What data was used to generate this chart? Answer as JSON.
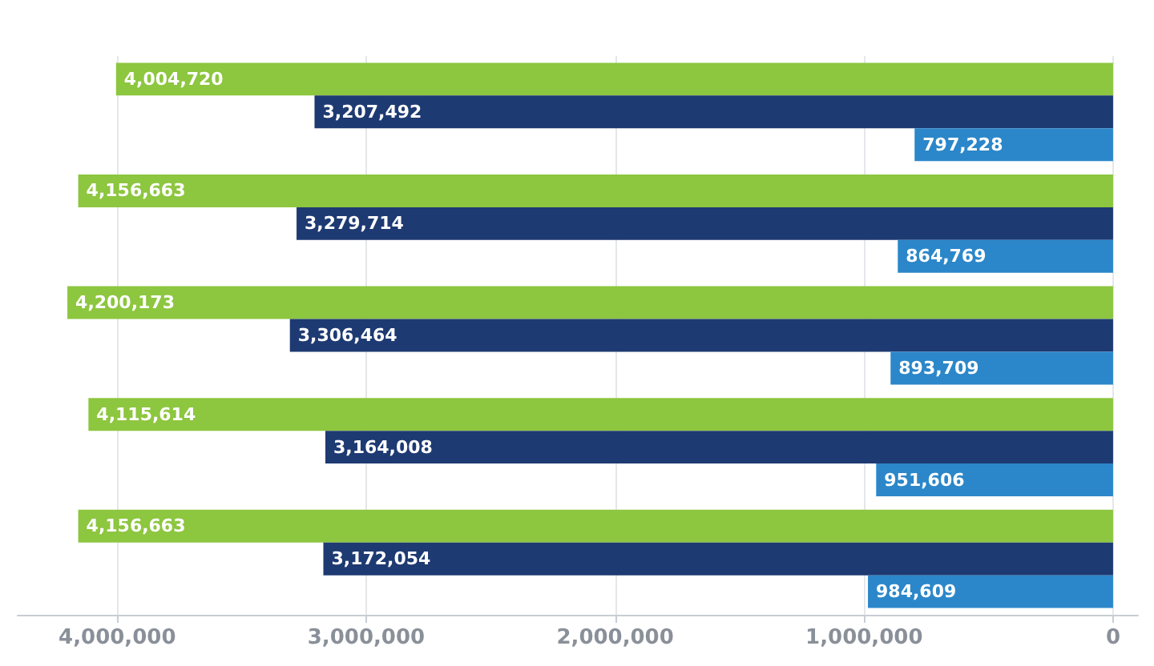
{
  "chart_data": {
    "type": "bar",
    "orientation": "horizontal",
    "categories": [
      null,
      null,
      null,
      null,
      null
    ],
    "series": [
      {
        "color": "#8dc63f",
        "values": [
          4004720,
          4156663,
          4200173,
          4115614,
          4156663
        ],
        "value_labels": [
          "4,004,720",
          "4,156,663",
          "4,200,173",
          "4,115,614",
          "4,156,663"
        ]
      },
      {
        "color": "#1e3a72",
        "values": [
          3207492,
          3279714,
          3306464,
          3164008,
          3172054
        ],
        "value_labels": [
          "3,207,492",
          "3,279,714",
          "3,306,464",
          "3,164,008",
          "3,172,054"
        ]
      },
      {
        "color": "#2b87c9",
        "values": [
          797228,
          864769,
          893709,
          951606,
          984609
        ],
        "value_labels": [
          "797,228",
          "864,769",
          "893,709",
          "951,606",
          "984,609"
        ]
      }
    ],
    "xlim": [
      4400000,
      -100000
    ],
    "xticks": [
      {
        "value": 4000000,
        "label": "4,000,000"
      },
      {
        "value": 3000000,
        "label": "3,000,000"
      },
      {
        "value": 2000000,
        "label": "2,000,000"
      },
      {
        "value": 1000000,
        "label": "1,000,000"
      },
      {
        "value": 0,
        "label": "0"
      }
    ],
    "grid": "x"
  }
}
